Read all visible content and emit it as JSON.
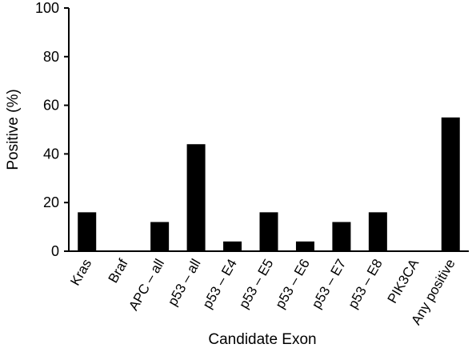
{
  "chart_data": {
    "type": "bar",
    "title": "",
    "xlabel": "Candidate Exon",
    "ylabel": "Positive (%)",
    "ylim": [
      0,
      100
    ],
    "yticks": [
      0,
      20,
      40,
      60,
      80,
      100
    ],
    "grid": false,
    "legend": "none",
    "bar_color": "#000000",
    "categories": [
      "Kras",
      "Braf",
      "APC – all",
      "p53 – all",
      "p53 – E4",
      "p53 – E5",
      "p53 – E6",
      "p53 – E7",
      "p53 – E8",
      "PIK3CA",
      "Any positive"
    ],
    "values": [
      16,
      0,
      12,
      44,
      4,
      16,
      4,
      12,
      16,
      0,
      55
    ]
  }
}
